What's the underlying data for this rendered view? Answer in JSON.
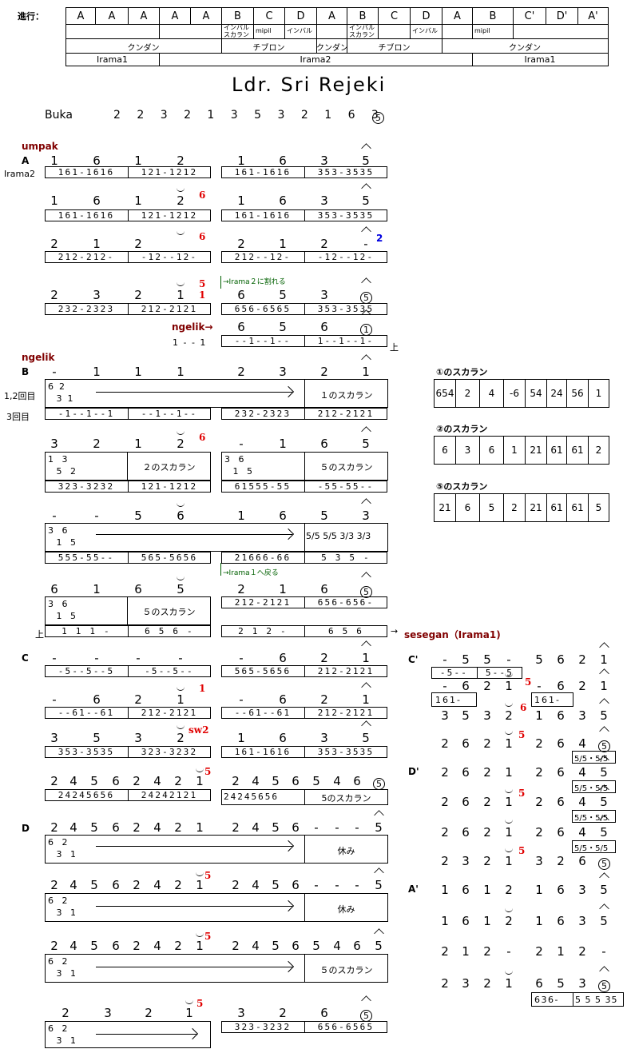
{
  "header": {
    "progress_label": "進行：",
    "sections": [
      "A",
      "A",
      "A",
      "A",
      "A",
      "B",
      "C",
      "D",
      "A",
      "B",
      "C",
      "D",
      "A",
      "B",
      "C'",
      "D'",
      "A'"
    ],
    "notes": [
      {
        "col": 5,
        "text": "インバル\nスカラン"
      },
      {
        "col": 6,
        "text": "mipil"
      },
      {
        "col": 7,
        "text": "インバル"
      },
      {
        "col": 9,
        "text": "インバル\nスカラン"
      },
      {
        "col": 11,
        "text": "インバル"
      },
      {
        "col": 13,
        "text": "mipil"
      }
    ],
    "kendang": [
      "クンダン",
      "チブロン",
      "クンダン",
      "チブロン",
      "クンダン"
    ],
    "irama": [
      "Irama1",
      "Irama2",
      "Irama1"
    ]
  },
  "title": "Ldr. Sri Rejeki",
  "buka": {
    "label": "Buka",
    "notes": "2 2 3 2 1   3 5 3 2 1 6 3",
    "gong": "5"
  },
  "labels": {
    "umpak": "umpak",
    "ngelik": "ngelik",
    "sesegan": "sesegan（Irama1)",
    "irama2": "Irama2",
    "ngelik_arrow": "ngelik→",
    "first_second": "1,2回目",
    "third": "3回目",
    "go_irama2": "→Irama２に割れる",
    "back_irama1": "→Irama１へ戻る",
    "up": "上",
    "rest": "休み",
    "sukaran_1": "１のスカラン",
    "sukaran_2": "２のスカラン",
    "sukaran_5": "５のスカラン",
    "sukaran_5b": "5のスカラン",
    "ngelik_pre": "1 - - 1"
  },
  "sections": {
    "A": "A",
    "B": "B",
    "C": "C",
    "D": "D",
    "Cp": "C'",
    "Dp": "D'",
    "Ap": "A'"
  },
  "sukaran_tables": [
    {
      "title": "①のスカラン",
      "cells": [
        "654",
        "2",
        "4",
        "-6",
        "54",
        "24",
        "56",
        "1"
      ]
    },
    {
      "title": "②のスカラン",
      "cells": [
        "6",
        "3",
        "6",
        "1",
        "21",
        "61",
        "61",
        "2"
      ]
    },
    {
      "title": "⑤のスカラン",
      "cells": [
        "21",
        "6",
        "5",
        "2",
        "21",
        "61",
        "61",
        "5"
      ]
    }
  ]
}
